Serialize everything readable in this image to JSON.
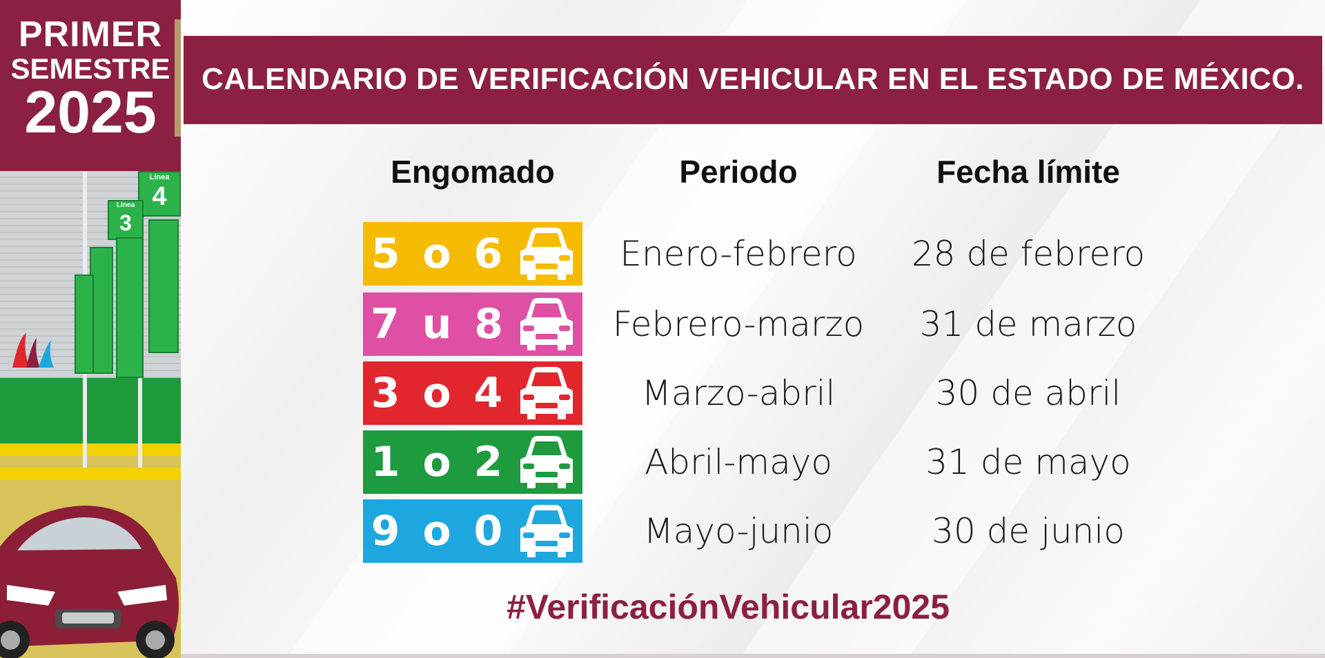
{
  "badge": {
    "line1": "PRIMER",
    "line2": "SEMESTRE",
    "line3": "2025"
  },
  "header": {
    "title": "CALENDARIO DE VERIFICACIÓN VEHICULAR EN EL ESTADO DE MÉXICO."
  },
  "columns": {
    "engomado": "Engomado",
    "periodo": "Periodo",
    "fecha": "Fecha límite"
  },
  "rows": [
    {
      "sticker": "5 o 6",
      "color": "#f5bb00",
      "periodo": "Enero-febrero",
      "fecha": "28 de febrero"
    },
    {
      "sticker": "7 u 8",
      "color": "#df4fa3",
      "periodo": "Febrero-marzo",
      "fecha": "31 de marzo"
    },
    {
      "sticker": "3 o 4",
      "color": "#e2262e",
      "periodo": "Marzo-abril",
      "fecha": "30 de abril"
    },
    {
      "sticker": "1 o 2",
      "color": "#1e9a3f",
      "periodo": "Abril-mayo",
      "fecha": "31 de mayo"
    },
    {
      "sticker": "9 o 0",
      "color": "#1ea7df",
      "periodo": "Mayo-junio",
      "fecha": "30 de junio"
    }
  ],
  "hashtag": "#VerificaciónVehicular2025",
  "photo": {
    "sign_numbers": [
      "4",
      "3"
    ],
    "sign_label": "Línea"
  },
  "colors": {
    "brand": "#8c2040",
    "gold": "#b59a6a"
  },
  "icons": {
    "car": "car-front-icon"
  }
}
